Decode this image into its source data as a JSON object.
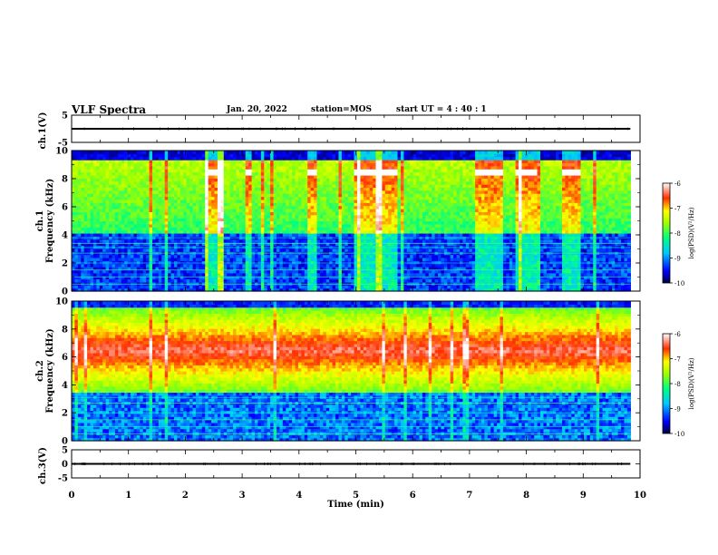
{
  "header": {
    "title": "VLF Spectra",
    "date": "Jan. 20, 2022",
    "station": "station=MOS",
    "start_time": "start UT =  4 : 40 : 1"
  },
  "chart_data": [
    {
      "type": "line",
      "panel": "ch1-waveform",
      "ylabel": "ch.1(V)",
      "ylim": [
        -5,
        5
      ],
      "yticks": [
        5,
        -5
      ],
      "xlim": [
        0,
        10
      ],
      "series": [
        {
          "x": [
            0,
            9.83
          ],
          "y": [
            0,
            0
          ]
        }
      ]
    },
    {
      "type": "heatmap",
      "panel": "ch1-spectrogram",
      "ylabel": "ch.1\nFrequency (kHz)",
      "ylabel_lines": [
        "ch.1",
        "Frequency (kHz)"
      ],
      "ylim": [
        0,
        10
      ],
      "yticks": [
        0,
        2,
        4,
        6,
        8,
        10
      ],
      "xlim": [
        0,
        10
      ],
      "data_end_min": 9.83,
      "colorbar": {
        "label": "log(PSD)(V²/Hz)",
        "ticks": [
          "-6",
          "-7",
          "-8",
          "-9",
          "-10"
        ],
        "range": [
          -10,
          -6
        ]
      },
      "active_intervals_min": [
        [
          2.35,
          2.7
        ],
        [
          3.05,
          3.15
        ],
        [
          4.15,
          4.3
        ],
        [
          4.95,
          5.75
        ],
        [
          7.1,
          7.6
        ],
        [
          7.8,
          8.2
        ],
        [
          8.65,
          8.95
        ]
      ],
      "tone_lines_khz": [
        0.5,
        1.0,
        1.5,
        2.0,
        2.7,
        3.1,
        3.4,
        3.8
      ]
    },
    {
      "type": "heatmap",
      "panel": "ch2-spectrogram",
      "ylabel": "ch.2\nFrequency (kHz)",
      "ylabel_lines": [
        "ch.2",
        "Frequency (kHz)"
      ],
      "ylim": [
        0,
        10
      ],
      "yticks": [
        0,
        2,
        4,
        6,
        8,
        10
      ],
      "xlim": [
        0,
        10
      ],
      "data_end_min": 9.83,
      "colorbar": {
        "label": "log(PSD)(V²/Hz)",
        "ticks": [
          "-6",
          "-7",
          "-8",
          "-9",
          "-10"
        ],
        "range": [
          -10,
          -6
        ]
      },
      "band_center_khz": 6.5,
      "tone_lines_khz": [
        0.5,
        1.0,
        1.5,
        2.0,
        2.7,
        3.1
      ]
    },
    {
      "type": "line",
      "panel": "ch3-waveform",
      "ylabel": "ch.3(V)",
      "ylim": [
        -5,
        5
      ],
      "yticks": [
        5,
        0,
        -5
      ],
      "xlim": [
        0,
        10
      ],
      "xlabel": "Time  (min)",
      "xticks": [
        0,
        1,
        2,
        3,
        4,
        5,
        6,
        7,
        8,
        9,
        10
      ],
      "series": [
        {
          "x": [
            0,
            9.83
          ],
          "y": [
            0,
            0
          ]
        }
      ]
    }
  ]
}
